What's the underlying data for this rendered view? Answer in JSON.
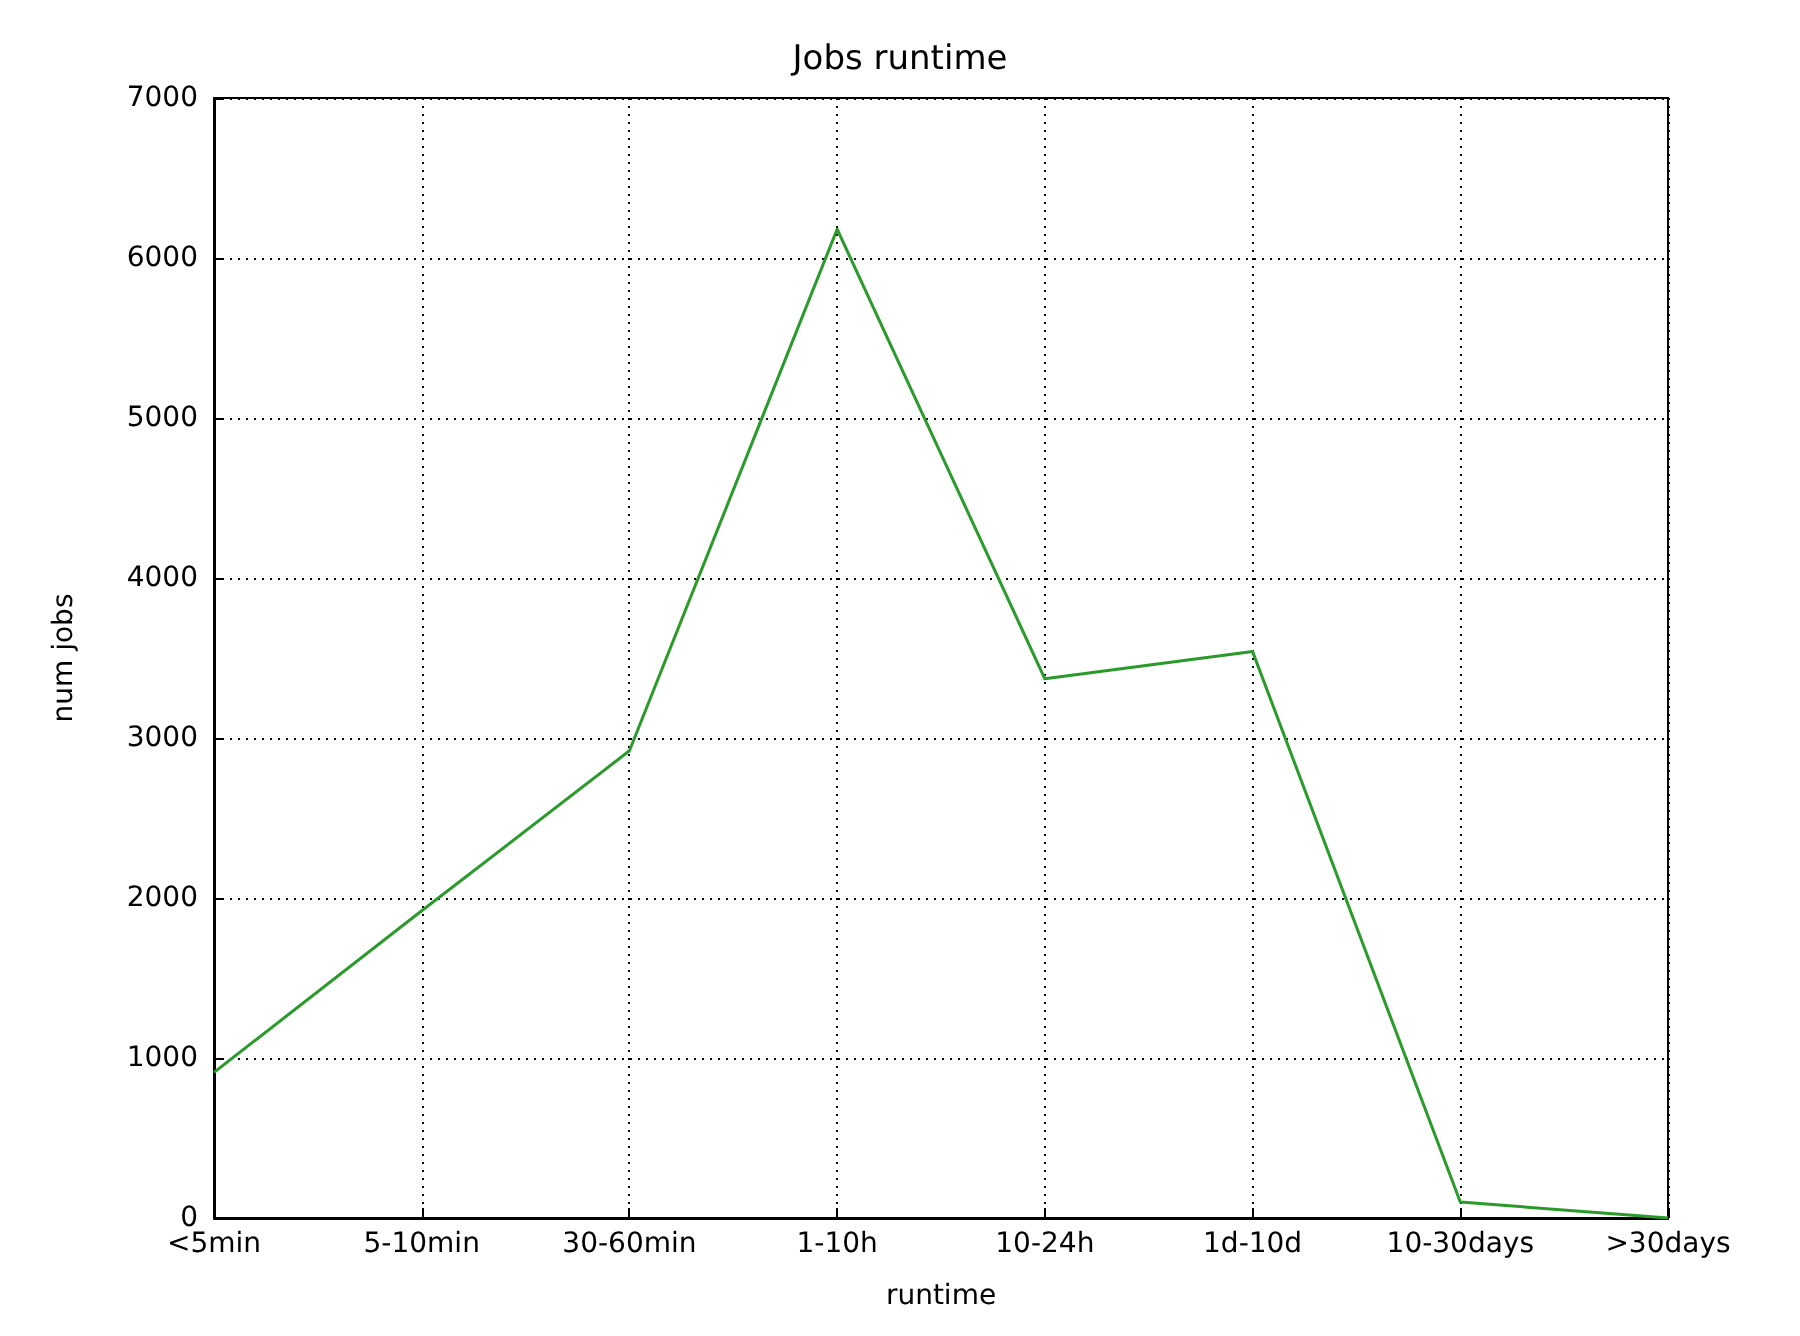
{
  "chart_data": {
    "type": "line",
    "title": "Jobs runtime",
    "xlabel": "runtime",
    "ylabel": "num jobs",
    "categories": [
      "<5min",
      "5-10min",
      "30-60min",
      "1-10h",
      "10-24h",
      "1d-10d",
      "10-30days",
      ">30days"
    ],
    "series": [
      {
        "color": "#2a9a2a",
        "values": [
          910,
          1920,
          2920,
          6180,
          3370,
          3540,
          100,
          0
        ]
      }
    ],
    "ylim": [
      0,
      7000
    ],
    "yticks": [
      0,
      1000,
      2000,
      3000,
      4000,
      5000,
      6000,
      7000
    ],
    "grid": true,
    "marker": "none",
    "line_style": "solid"
  }
}
